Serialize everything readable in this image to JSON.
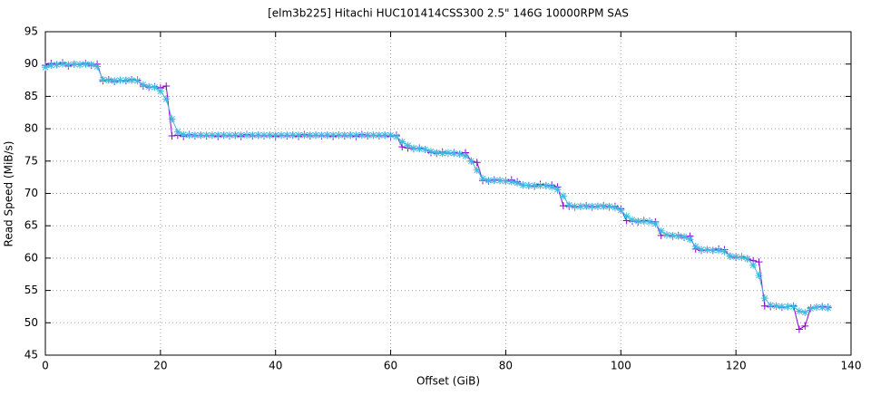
{
  "chart_data": {
    "type": "line",
    "title": "[elm3b225] Hitachi HUC101414CSS300 2.5\" 146G 10000RPM SAS",
    "x_label": "Offset (GiB)",
    "y_label": "Read Speed (MiB/s)",
    "xlim": [
      0,
      140
    ],
    "xticks": [
      0,
      20,
      40,
      60,
      80,
      100,
      120,
      140
    ],
    "ylim": [
      45,
      95
    ],
    "yticks": [
      45,
      50,
      55,
      60,
      65,
      70,
      75,
      80,
      85,
      90,
      95
    ],
    "grid": true,
    "x": [
      0,
      1,
      2,
      3,
      4,
      5,
      6,
      7,
      8,
      9,
      10,
      11,
      12,
      13,
      14,
      15,
      16,
      17,
      18,
      19,
      20,
      21,
      22,
      23,
      24,
      25,
      26,
      27,
      28,
      29,
      30,
      31,
      32,
      33,
      34,
      35,
      36,
      37,
      38,
      39,
      40,
      41,
      42,
      43,
      44,
      45,
      46,
      47,
      48,
      49,
      50,
      51,
      52,
      53,
      54,
      55,
      56,
      57,
      58,
      59,
      60,
      61,
      62,
      63,
      64,
      65,
      66,
      67,
      68,
      69,
      70,
      71,
      72,
      73,
      74,
      75,
      76,
      77,
      78,
      79,
      80,
      81,
      82,
      83,
      84,
      85,
      86,
      87,
      88,
      89,
      90,
      91,
      92,
      93,
      94,
      95,
      96,
      97,
      98,
      99,
      100,
      101,
      102,
      103,
      104,
      105,
      106,
      107,
      108,
      109,
      110,
      111,
      112,
      113,
      114,
      115,
      116,
      117,
      118,
      119,
      120,
      121,
      122,
      123,
      124,
      125,
      126,
      127,
      128,
      129,
      130,
      131,
      132,
      133,
      134,
      135,
      136
    ],
    "series": [
      {
        "color": "#9400d3",
        "marker": "plus",
        "values": [
          89.8,
          90.1,
          89.9,
          90.2,
          89.7,
          90.0,
          89.9,
          90.1,
          89.8,
          90.0,
          87.4,
          87.6,
          87.3,
          87.5,
          87.4,
          87.6,
          87.5,
          86.6,
          86.4,
          86.5,
          86.3,
          86.6,
          78.9,
          79.0,
          78.8,
          79.1,
          78.9,
          79.0,
          78.9,
          79.0,
          78.8,
          79.0,
          78.9,
          79.0,
          78.8,
          79.1,
          78.9,
          79.0,
          78.9,
          79.0,
          78.8,
          79.0,
          78.9,
          79.0,
          78.8,
          79.1,
          78.9,
          79.0,
          78.9,
          79.0,
          78.8,
          79.0,
          78.9,
          79.0,
          78.8,
          79.1,
          78.9,
          79.0,
          78.9,
          79.0,
          78.8,
          79.0,
          77.2,
          77.0,
          76.9,
          77.0,
          76.8,
          76.3,
          76.2,
          76.4,
          76.2,
          76.3,
          76.1,
          76.3,
          75.0,
          74.8,
          72.0,
          71.9,
          72.1,
          72.0,
          71.9,
          72.1,
          71.8,
          71.3,
          71.2,
          71.1,
          71.4,
          71.2,
          71.3,
          71.0,
          68.1,
          68.0,
          67.9,
          68.0,
          68.1,
          67.9,
          68.0,
          68.1,
          67.9,
          68.0,
          67.6,
          65.8,
          65.7,
          65.6,
          65.8,
          65.7,
          65.6,
          63.5,
          63.6,
          63.4,
          63.5,
          63.2,
          63.4,
          61.4,
          61.2,
          61.3,
          61.2,
          61.4,
          61.3,
          60.3,
          60.1,
          60.2,
          59.9,
          59.6,
          59.4,
          52.6,
          52.5,
          52.6,
          52.4,
          52.5,
          52.6,
          49.0,
          49.5,
          52.3,
          52.4,
          52.5,
          52.4
        ]
      },
      {
        "color": "#3fb8e0",
        "marker": "star",
        "values": [
          89.5,
          89.8,
          89.9,
          90.0,
          89.9,
          90.0,
          89.9,
          90.0,
          89.9,
          89.6,
          87.6,
          87.5,
          87.4,
          87.5,
          87.5,
          87.5,
          87.4,
          86.8,
          86.5,
          86.4,
          85.8,
          84.6,
          81.5,
          79.5,
          79.1,
          79.0,
          79.0,
          79.0,
          79.0,
          79.0,
          79.0,
          79.0,
          79.0,
          79.0,
          79.0,
          79.0,
          79.0,
          79.0,
          79.0,
          79.0,
          79.0,
          79.0,
          79.0,
          79.0,
          79.0,
          79.0,
          79.0,
          79.0,
          79.0,
          79.0,
          79.0,
          79.0,
          79.0,
          79.0,
          79.0,
          79.0,
          79.0,
          79.0,
          79.0,
          79.0,
          79.0,
          78.8,
          78.0,
          77.4,
          77.0,
          76.9,
          76.8,
          76.5,
          76.3,
          76.2,
          76.3,
          76.2,
          76.1,
          75.8,
          75.0,
          73.6,
          72.3,
          72.0,
          72.0,
          72.0,
          71.9,
          71.8,
          71.6,
          71.3,
          71.2,
          71.2,
          71.2,
          71.2,
          71.0,
          70.6,
          69.6,
          68.2,
          68.0,
          68.0,
          68.0,
          68.0,
          68.0,
          68.0,
          68.0,
          67.8,
          67.4,
          66.5,
          65.9,
          65.7,
          65.7,
          65.6,
          65.3,
          64.2,
          63.6,
          63.5,
          63.4,
          63.3,
          62.9,
          61.8,
          61.3,
          61.3,
          61.2,
          61.2,
          61.0,
          60.3,
          60.2,
          60.1,
          59.9,
          58.9,
          57.3,
          53.8,
          52.7,
          52.6,
          52.5,
          52.5,
          52.5,
          51.8,
          51.6,
          52.2,
          52.4,
          52.4,
          52.3
        ]
      }
    ]
  }
}
